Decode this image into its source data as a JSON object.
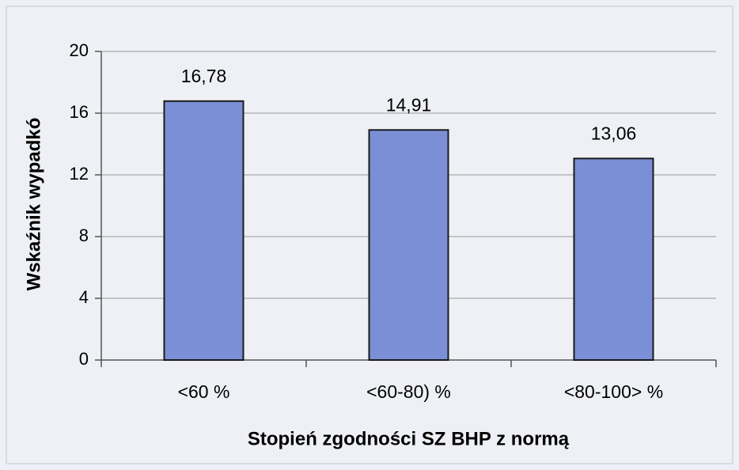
{
  "chart_data": {
    "type": "bar",
    "categories": [
      "<60 %",
      "<60-80) %",
      "<80-100> %"
    ],
    "values": [
      16.78,
      14.91,
      13.06
    ],
    "value_labels": [
      "16,78",
      "14,91",
      "13,06"
    ],
    "color": "#7b8fd6",
    "ylabel": "Wskaźnik wypadkó",
    "xlabel": "Stopień zgodności SZ BHP z normą",
    "ylim": [
      0,
      20
    ],
    "yticks": [
      0,
      4,
      8,
      12,
      16,
      20
    ],
    "grid": true
  }
}
